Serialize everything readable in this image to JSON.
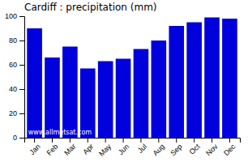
{
  "chart_data": {
    "type": "bar",
    "title": "Cardiff : precipitation (mm)",
    "categories": [
      "Jan",
      "Feb",
      "Mar",
      "Apr",
      "May",
      "Jun",
      "Jul",
      "Aug",
      "Sep",
      "Oct",
      "Nov",
      "Dec"
    ],
    "values": [
      90,
      66,
      75,
      57,
      63,
      65,
      73,
      80,
      92,
      95,
      99,
      98
    ],
    "color": "#0000DD",
    "ylim": [
      0,
      100
    ],
    "yticks": [
      0,
      20,
      40,
      60,
      80,
      100
    ],
    "grid": false,
    "annotations": [
      {
        "text": "www.allmetsat.com",
        "color": "#ffffff"
      }
    ]
  }
}
